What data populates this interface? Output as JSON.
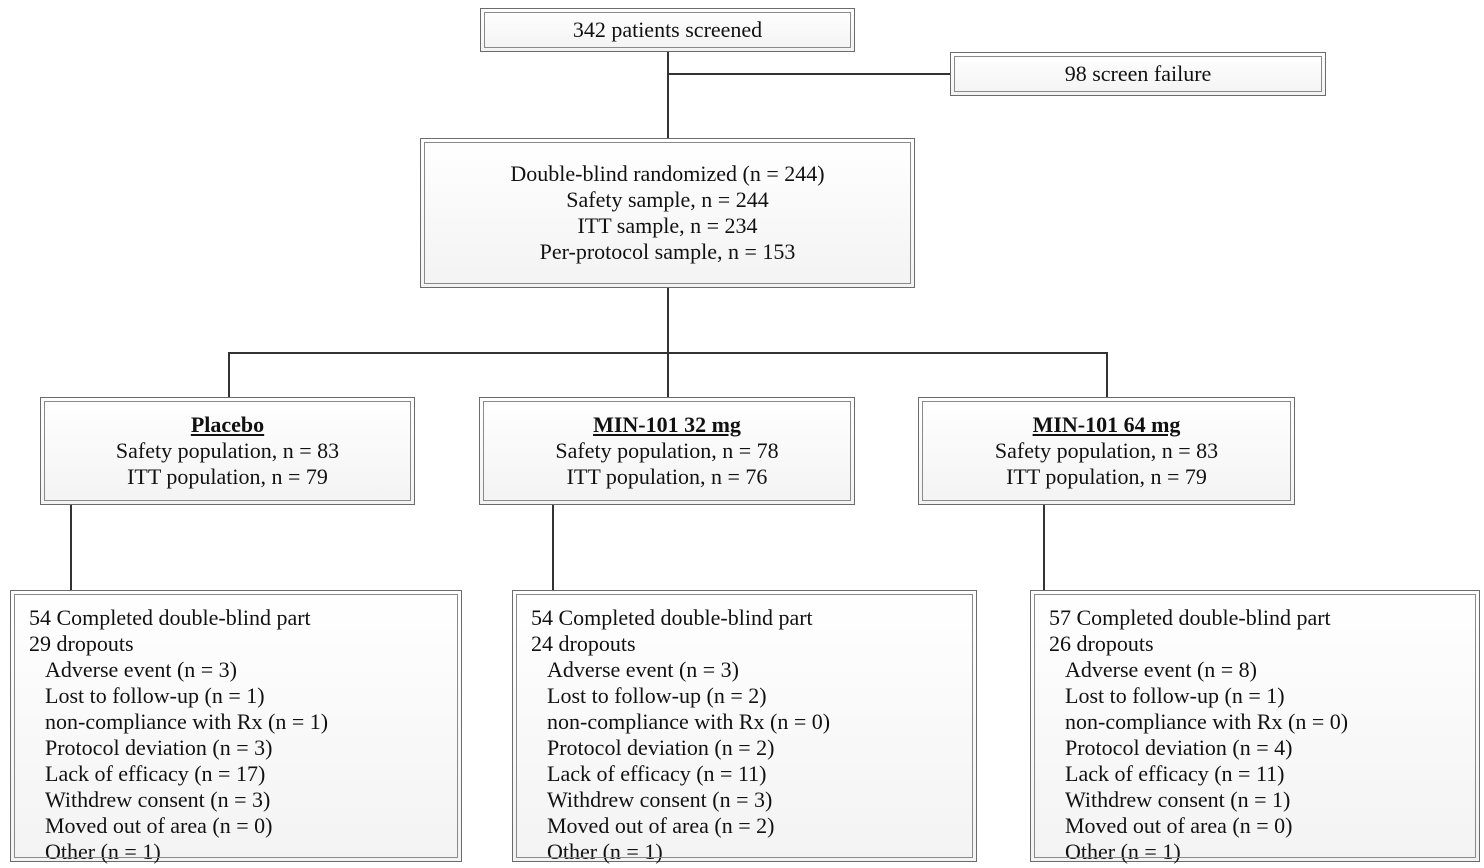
{
  "screening": {
    "screened": "342 patients screened",
    "failure": "98 screen failure"
  },
  "randomized": {
    "lines": [
      "Double-blind randomized (n = 244)",
      "Safety sample, n = 244",
      "ITT sample, n = 234",
      "Per-protocol sample, n = 153"
    ]
  },
  "arms": [
    {
      "title": "Placebo",
      "safety": "Safety population, n = 83",
      "itt": "ITT population, n = 79",
      "completed": "54 Completed double-blind part",
      "dropouts": "29 dropouts",
      "reasons": [
        "Adverse event (n = 3)",
        "Lost to follow-up (n = 1)",
        "non-compliance with Rx (n = 1)",
        "Protocol deviation (n = 3)",
        "Lack of efficacy (n = 17)",
        "Withdrew consent (n = 3)",
        "Moved out of area (n = 0)",
        "Other (n = 1)"
      ]
    },
    {
      "title": "MIN-101 32 mg",
      "safety": "Safety population, n = 78",
      "itt": "ITT population, n = 76",
      "completed": "54 Completed double-blind part",
      "dropouts": "24 dropouts",
      "reasons": [
        "Adverse event (n = 3)",
        "Lost to follow-up (n = 2)",
        "non-compliance with Rx (n = 0)",
        "Protocol deviation (n = 2)",
        "Lack of efficacy (n = 11)",
        "Withdrew consent (n = 3)",
        "Moved out of area (n = 2)",
        "Other (n = 1)"
      ]
    },
    {
      "title": "MIN-101 64 mg",
      "safety": "Safety population, n = 83",
      "itt": "ITT population, n = 79",
      "completed": "57 Completed double-blind part",
      "dropouts": "26 dropouts",
      "reasons": [
        "Adverse event (n = 8)",
        "Lost to follow-up (n = 1)",
        "non-compliance with Rx (n = 0)",
        "Protocol deviation (n = 4)",
        "Lack of efficacy (n = 11)",
        "Withdrew consent (n = 1)",
        "Moved out of area (n = 0)",
        "Other (n = 1)"
      ]
    }
  ]
}
